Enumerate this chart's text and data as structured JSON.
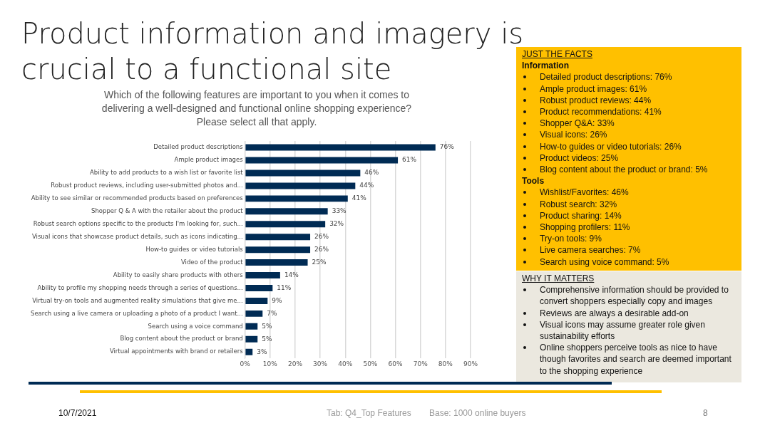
{
  "chart_data": {
    "type": "bar",
    "orientation": "horizontal",
    "title": "Product information and imagery is crucial to a functional site",
    "subtitle": "Which of the following features are important to you when it comes to delivering a well-designed and functional online shopping experience? Please select all that apply.",
    "categories": [
      "Detailed product descriptions",
      "Ample product images",
      "Ability to add products to a wish list or favorite list",
      "Robust product reviews, including user-submitted photos and...",
      "Ability to see similar or recommended products based on preferences",
      "Shopper Q & A with the retailer about the product",
      "Robust search options specific to the products I'm looking for, such...",
      "Visual icons that showcase product details, such as icons indicating...",
      "How-to guides or video tutorials",
      "Video of the product",
      "Ability to easily share products with others",
      "Ability to profile my shopping needs through a series of questions...",
      "Virtual try-on tools and augmented reality simulations that give me...",
      "Search using a live camera or uploading a photo of a product I want...",
      "Search using a voice command",
      "Blog content about the product or brand",
      "Virtual appointments with brand or retailers"
    ],
    "values": [
      76,
      61,
      46,
      44,
      41,
      33,
      32,
      26,
      26,
      25,
      14,
      11,
      9,
      7,
      5,
      5,
      3
    ],
    "value_labels": [
      "76%",
      "61%",
      "46%",
      "44%",
      "41%",
      "33%",
      "32%",
      "26%",
      "26%",
      "25%",
      "14%",
      "11%",
      "9%",
      "7%",
      "5%",
      "5%",
      "3%"
    ],
    "color": "#002b54",
    "xlim": [
      0,
      90
    ],
    "xticks": [
      {
        "value": 0,
        "label": "0%"
      },
      {
        "value": 10,
        "label": "10%"
      },
      {
        "value": 20,
        "label": "20%"
      },
      {
        "value": 30,
        "label": "30%"
      },
      {
        "value": 40,
        "label": "40%"
      },
      {
        "value": 50,
        "label": "50%"
      },
      {
        "value": 60,
        "label": "60%"
      },
      {
        "value": 70,
        "label": "70%"
      },
      {
        "value": 80,
        "label": "80%"
      },
      {
        "value": 90,
        "label": "90%"
      }
    ],
    "grid": "x",
    "annotations": [
      "JUST THE FACTS",
      "Information",
      "Detailed product descriptions:  76%",
      "Ample product images:  61%",
      "Robust product reviews:  44%",
      "Product recommendations:  41%",
      "Shopper Q&A:  33%",
      "Visual icons:  26%",
      "How-to guides or video tutorials:  26%",
      "Product videos:  25%",
      "Blog content about the product or brand:  5%",
      "Tools",
      "Wishlist/Favorites:  46%",
      "Robust search:  32%",
      "Product sharing: 14%",
      "Shopping profilers:  11%",
      "Try-on tools:  9%",
      "Live camera searches:  7%",
      "Search using voice command:  5%",
      "WHY IT MATTERS",
      "Comprehensive information should be provided to convert shoppers especially copy and images",
      "Reviews are always a desirable add-on",
      "Visual icons may assume greater role given sustainability efforts",
      "Online shoppers perceive tools as nice to have though favorites and search are deemed important to the shopping experience",
      "10/7/2021",
      "Tab:  Q4_Top Features",
      "Base:  1000 online buyers",
      "8"
    ]
  }
}
